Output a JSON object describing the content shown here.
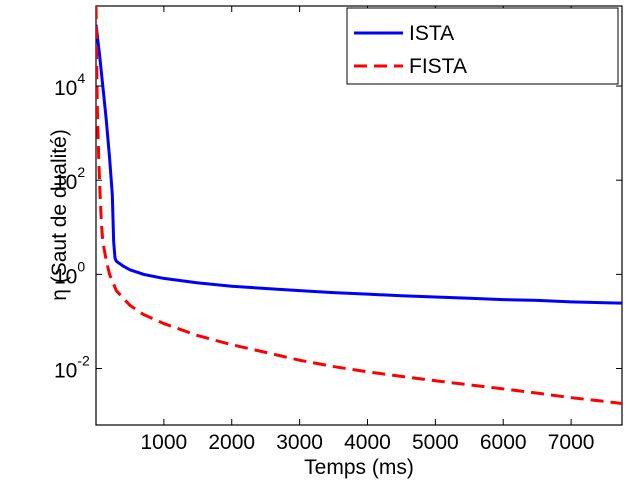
{
  "chart_data": {
    "type": "line",
    "xlabel": "Temps (ms)",
    "ylabel": "η (Saut de dualité)",
    "xlim": [
      0,
      7750
    ],
    "ylim_log10": [
      -3.2,
      5.7
    ],
    "y_scale": "log",
    "grid": false,
    "legend_position": "top-right",
    "x_ticks": [
      1000,
      2000,
      3000,
      4000,
      5000,
      6000,
      7000
    ],
    "x_tick_labels": [
      "1000",
      "2000",
      "3000",
      "4000",
      "5000",
      "6000",
      "7000"
    ],
    "y_ticks_log10": [
      4,
      2,
      0,
      -2
    ],
    "y_tick_labels": [
      {
        "base": "10",
        "exp": "4"
      },
      {
        "base": "10",
        "exp": "2"
      },
      {
        "base": "10",
        "exp": "0"
      },
      {
        "base": "10",
        "exp": "-2"
      }
    ],
    "series": [
      {
        "name": "ISTA",
        "color": "#0000ff",
        "dash": "solid",
        "x": [
          0,
          50,
          100,
          150,
          200,
          240,
          260,
          280,
          300,
          400,
          500,
          700,
          1000,
          1500,
          2000,
          2500,
          3000,
          3500,
          4000,
          4500,
          5000,
          5500,
          6000,
          6500,
          7000,
          7500,
          7750
        ],
        "y": [
          200000,
          50000,
          10000,
          2000,
          300,
          50,
          5,
          2.2,
          1.9,
          1.5,
          1.25,
          1.0,
          0.82,
          0.66,
          0.56,
          0.5,
          0.45,
          0.41,
          0.38,
          0.35,
          0.33,
          0.31,
          0.29,
          0.28,
          0.26,
          0.25,
          0.245
        ]
      },
      {
        "name": "FISTA",
        "color": "#ff0000",
        "dash": "dashed",
        "x": [
          0,
          10,
          20,
          40,
          60,
          80,
          100,
          150,
          200,
          300,
          500,
          700,
          1000,
          1500,
          2000,
          2500,
          3000,
          3500,
          4000,
          4500,
          5000,
          5500,
          6000,
          6500,
          7000,
          7500,
          7750
        ],
        "y": [
          500000,
          30000,
          3000,
          300,
          50,
          12,
          5,
          2,
          1.0,
          0.45,
          0.22,
          0.14,
          0.09,
          0.05,
          0.032,
          0.022,
          0.015,
          0.011,
          0.0085,
          0.0068,
          0.0055,
          0.0045,
          0.0037,
          0.003,
          0.0024,
          0.002,
          0.0018
        ]
      }
    ]
  }
}
